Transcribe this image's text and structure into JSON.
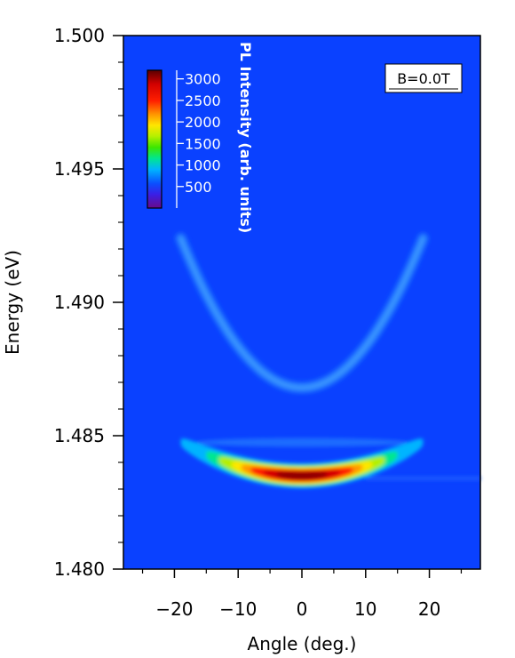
{
  "chart_data": {
    "type": "heatmap",
    "title": "",
    "xlabel": "Angle (deg.)",
    "ylabel": "Energy (eV)",
    "xlim": [
      -28,
      28
    ],
    "ylim": [
      1.48,
      1.5
    ],
    "x_ticks": [
      -20,
      -10,
      0,
      10,
      20
    ],
    "x_tick_labels": [
      "−20",
      "−10",
      "0",
      "10",
      "20"
    ],
    "y_ticks": [
      1.48,
      1.485,
      1.49,
      1.495,
      1.5
    ],
    "y_tick_labels": [
      "1.480",
      "1.485",
      "1.490",
      "1.495",
      "1.500"
    ],
    "colorbar": {
      "label": "PL Intensity (arb. units)",
      "range": [
        0,
        3200
      ],
      "ticks": [
        500,
        1000,
        1500,
        2000,
        2500,
        3000
      ],
      "tick_labels": [
        "500",
        "1000",
        "1500",
        "2000",
        "2500",
        "3000"
      ],
      "colormap": [
        "#6a0a8a",
        "#3a1fe6",
        "#0a50ff",
        "#00b4ff",
        "#00e690",
        "#3ce600",
        "#b4f000",
        "#ffe600",
        "#ff9600",
        "#ff1e00",
        "#d20000",
        "#5a0000"
      ]
    },
    "background_color": "#0a41ff",
    "annotation": "B=0.0T",
    "branches": [
      {
        "name": "upper",
        "min_energy": 1.4868,
        "peak_intensity": 700
      },
      {
        "name": "lower",
        "min_energy": 1.4835,
        "peak_intensity": 3100
      }
    ]
  }
}
